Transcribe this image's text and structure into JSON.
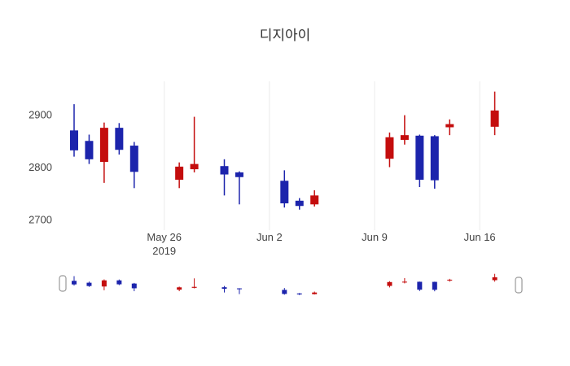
{
  "title": "디지아이",
  "colors": {
    "up": "#c40d0d",
    "down": "#1c24ac",
    "grid": "#ebebeb",
    "axis_text": "#444444",
    "title_text": "#333333",
    "handle_border": "#999999",
    "handle_fill": "#ffffff"
  },
  "chart_data": {
    "type": "candlestick",
    "title": "디지아이",
    "legend": "none",
    "grid": "vertical-only",
    "ylim": [
      2680,
      2960
    ],
    "y_ticks": [
      2700,
      2800,
      2900
    ],
    "x_ticks": [
      {
        "label": "May 26",
        "sublabel": "2019",
        "day": 6
      },
      {
        "label": "Jun 2",
        "sublabel": "",
        "day": 13
      },
      {
        "label": "Jun 9",
        "sublabel": "",
        "day": 20
      },
      {
        "label": "Jun 16",
        "sublabel": "",
        "day": 27
      }
    ],
    "candles": [
      {
        "date": "May 20",
        "day": 0,
        "open": 2870,
        "high": 2920,
        "low": 2820,
        "close": 2832
      },
      {
        "date": "May 21",
        "day": 1,
        "open": 2850,
        "high": 2862,
        "low": 2806,
        "close": 2815
      },
      {
        "date": "May 22",
        "day": 2,
        "open": 2810,
        "high": 2885,
        "low": 2770,
        "close": 2875
      },
      {
        "date": "May 23",
        "day": 3,
        "open": 2875,
        "high": 2884,
        "low": 2824,
        "close": 2833
      },
      {
        "date": "May 24",
        "day": 4,
        "open": 2841,
        "high": 2848,
        "low": 2760,
        "close": 2791
      },
      {
        "date": "May 27",
        "day": 7,
        "open": 2776,
        "high": 2809,
        "low": 2760,
        "close": 2801
      },
      {
        "date": "May 28",
        "day": 8,
        "open": 2796,
        "high": 2896,
        "low": 2790,
        "close": 2806
      },
      {
        "date": "May 30",
        "day": 10,
        "open": 2802,
        "high": 2815,
        "low": 2746,
        "close": 2786
      },
      {
        "date": "May 31",
        "day": 11,
        "open": 2790,
        "high": 2792,
        "low": 2729,
        "close": 2781
      },
      {
        "date": "Jun 3",
        "day": 14,
        "open": 2774,
        "high": 2794,
        "low": 2723,
        "close": 2731
      },
      {
        "date": "Jun 4",
        "day": 15,
        "open": 2736,
        "high": 2741,
        "low": 2719,
        "close": 2726
      },
      {
        "date": "Jun 5",
        "day": 16,
        "open": 2729,
        "high": 2756,
        "low": 2725,
        "close": 2746
      },
      {
        "date": "Jun 10",
        "day": 21,
        "open": 2816,
        "high": 2866,
        "low": 2800,
        "close": 2857
      },
      {
        "date": "Jun 11",
        "day": 22,
        "open": 2852,
        "high": 2899,
        "low": 2843,
        "close": 2861
      },
      {
        "date": "Jun 12",
        "day": 23,
        "open": 2860,
        "high": 2862,
        "low": 2762,
        "close": 2776
      },
      {
        "date": "Jun 13",
        "day": 24,
        "open": 2859,
        "high": 2861,
        "low": 2759,
        "close": 2775
      },
      {
        "date": "Jun 14",
        "day": 25,
        "open": 2876,
        "high": 2891,
        "low": 2861,
        "close": 2882
      },
      {
        "date": "Jun 17",
        "day": 28,
        "open": 2877,
        "high": 2944,
        "low": 2861,
        "close": 2908
      }
    ],
    "rangeslider": {
      "visible": true,
      "range_start": "May 20",
      "range_end": "Jun 17"
    }
  }
}
